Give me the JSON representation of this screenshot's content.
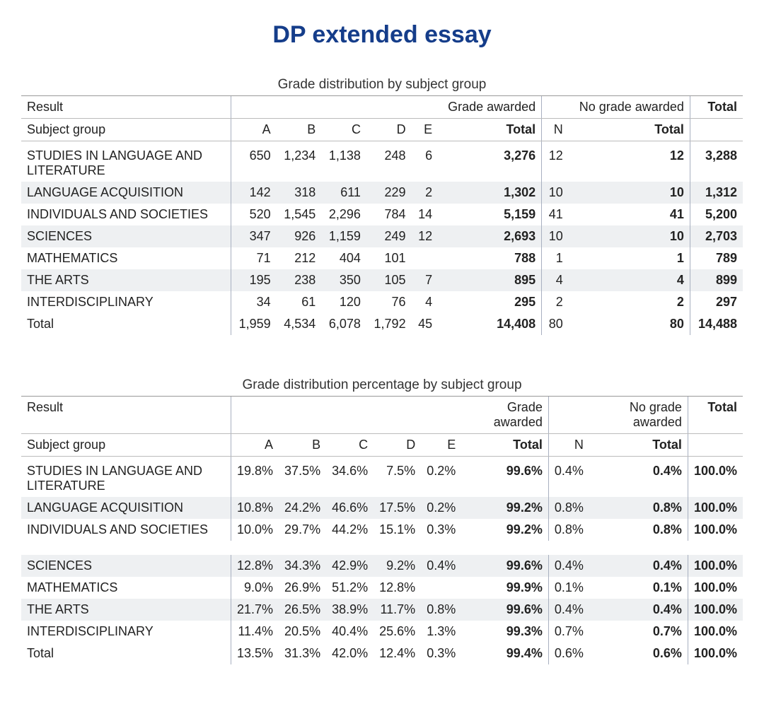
{
  "page_title": "DP extended essay",
  "labels": {
    "result": "Result",
    "subject_group": "Subject group",
    "grade_awarded": "Grade awarded",
    "no_grade_awarded": "No grade awarded",
    "total": "Total",
    "A": "A",
    "B": "B",
    "C": "C",
    "D": "D",
    "E": "E",
    "N": "N"
  },
  "colors": {
    "title_color": "#153d8a",
    "row_shade": "#eef0f2",
    "border": "#a8b0c0",
    "background": "#ffffff",
    "text": "#222222"
  },
  "table1": {
    "caption": "Grade distribution by subject group",
    "rows": [
      {
        "subject": "STUDIES IN LANGUAGE AND LITERATURE",
        "A": "650",
        "B": "1,234",
        "C": "1,138",
        "D": "248",
        "E": "6",
        "ga_total": "3,276",
        "N": "12",
        "ng_total": "12",
        "grand": "3,288",
        "shade": false
      },
      {
        "subject": "LANGUAGE ACQUISITION",
        "A": "142",
        "B": "318",
        "C": "611",
        "D": "229",
        "E": "2",
        "ga_total": "1,302",
        "N": "10",
        "ng_total": "10",
        "grand": "1,312",
        "shade": true
      },
      {
        "subject": "INDIVIDUALS AND SOCIETIES",
        "A": "520",
        "B": "1,545",
        "C": "2,296",
        "D": "784",
        "E": "14",
        "ga_total": "5,159",
        "N": "41",
        "ng_total": "41",
        "grand": "5,200",
        "shade": false
      },
      {
        "subject": "SCIENCES",
        "A": "347",
        "B": "926",
        "C": "1,159",
        "D": "249",
        "E": "12",
        "ga_total": "2,693",
        "N": "10",
        "ng_total": "10",
        "grand": "2,703",
        "shade": true
      },
      {
        "subject": "MATHEMATICS",
        "A": "71",
        "B": "212",
        "C": "404",
        "D": "101",
        "E": "",
        "ga_total": "788",
        "N": "1",
        "ng_total": "1",
        "grand": "789",
        "shade": false
      },
      {
        "subject": "THE ARTS",
        "A": "195",
        "B": "238",
        "C": "350",
        "D": "105",
        "E": "7",
        "ga_total": "895",
        "N": "4",
        "ng_total": "4",
        "grand": "899",
        "shade": true
      },
      {
        "subject": "INTERDISCIPLINARY",
        "A": "34",
        "B": "61",
        "C": "120",
        "D": "76",
        "E": "4",
        "ga_total": "295",
        "N": "2",
        "ng_total": "2",
        "grand": "297",
        "shade": false
      }
    ],
    "total_row": {
      "subject": "Total",
      "A": "1,959",
      "B": "4,534",
      "C": "6,078",
      "D": "1,792",
      "E": "45",
      "ga_total": "14,408",
      "N": "80",
      "ng_total": "80",
      "grand": "14,488"
    }
  },
  "table2": {
    "caption": "Grade distribution percentage by subject group",
    "rows": [
      {
        "subject": "STUDIES IN LANGUAGE AND LITERATURE",
        "A": "19.8%",
        "B": "37.5%",
        "C": "34.6%",
        "D": "7.5%",
        "E": "0.2%",
        "ga_total": "99.6%",
        "N": "0.4%",
        "ng_total": "0.4%",
        "grand": "100.0%",
        "shade": false,
        "gap_after": false
      },
      {
        "subject": "LANGUAGE ACQUISITION",
        "A": "10.8%",
        "B": "24.2%",
        "C": "46.6%",
        "D": "17.5%",
        "E": "0.2%",
        "ga_total": "99.2%",
        "N": "0.8%",
        "ng_total": "0.8%",
        "grand": "100.0%",
        "shade": true,
        "gap_after": false
      },
      {
        "subject": "INDIVIDUALS AND SOCIETIES",
        "A": "10.0%",
        "B": "29.7%",
        "C": "44.2%",
        "D": "15.1%",
        "E": "0.3%",
        "ga_total": "99.2%",
        "N": "0.8%",
        "ng_total": "0.8%",
        "grand": "100.0%",
        "shade": false,
        "gap_after": true
      },
      {
        "subject": "SCIENCES",
        "A": "12.8%",
        "B": "34.3%",
        "C": "42.9%",
        "D": "9.2%",
        "E": "0.4%",
        "ga_total": "99.6%",
        "N": "0.4%",
        "ng_total": "0.4%",
        "grand": "100.0%",
        "shade": true,
        "gap_after": false
      },
      {
        "subject": "MATHEMATICS",
        "A": "9.0%",
        "B": "26.9%",
        "C": "51.2%",
        "D": "12.8%",
        "E": "",
        "ga_total": "99.9%",
        "N": "0.1%",
        "ng_total": "0.1%",
        "grand": "100.0%",
        "shade": false,
        "gap_after": false
      },
      {
        "subject": "THE ARTS",
        "A": "21.7%",
        "B": "26.5%",
        "C": "38.9%",
        "D": "11.7%",
        "E": "0.8%",
        "ga_total": "99.6%",
        "N": "0.4%",
        "ng_total": "0.4%",
        "grand": "100.0%",
        "shade": true,
        "gap_after": false
      },
      {
        "subject": "INTERDISCIPLINARY",
        "A": "11.4%",
        "B": "20.5%",
        "C": "40.4%",
        "D": "25.6%",
        "E": "1.3%",
        "ga_total": "99.3%",
        "N": "0.7%",
        "ng_total": "0.7%",
        "grand": "100.0%",
        "shade": false,
        "gap_after": false
      }
    ],
    "total_row": {
      "subject": "Total",
      "A": "13.5%",
      "B": "31.3%",
      "C": "42.0%",
      "D": "12.4%",
      "E": "0.3%",
      "ga_total": "99.4%",
      "N": "0.6%",
      "ng_total": "0.6%",
      "grand": "100.0%"
    }
  }
}
